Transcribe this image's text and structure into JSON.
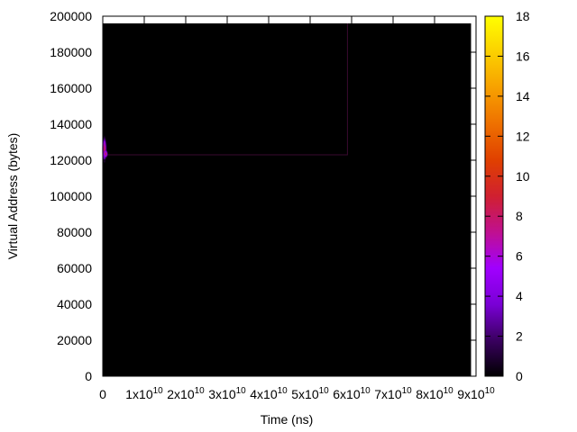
{
  "chart_data": {
    "type": "heatmap",
    "title": "",
    "xlabel": "Time (ns)",
    "ylabel": "Virtual Address (bytes)",
    "xlim": [
      0,
      90000000000
    ],
    "ylim": [
      0,
      200000
    ],
    "x_ticks": [
      {
        "value": 0,
        "base": "0",
        "exp": ""
      },
      {
        "value": 10000000000,
        "base": "1x10",
        "exp": "10"
      },
      {
        "value": 20000000000,
        "base": "2x10",
        "exp": "10"
      },
      {
        "value": 30000000000,
        "base": "3x10",
        "exp": "10"
      },
      {
        "value": 40000000000,
        "base": "4x10",
        "exp": "10"
      },
      {
        "value": 50000000000,
        "base": "5x10",
        "exp": "10"
      },
      {
        "value": 60000000000,
        "base": "6x10",
        "exp": "10"
      },
      {
        "value": 70000000000,
        "base": "7x10",
        "exp": "10"
      },
      {
        "value": 80000000000,
        "base": "8x10",
        "exp": "10"
      },
      {
        "value": 90000000000,
        "base": "9x10",
        "exp": "10"
      }
    ],
    "y_ticks": [
      "0",
      "20000",
      "40000",
      "60000",
      "80000",
      "100000",
      "120000",
      "140000",
      "160000",
      "180000",
      "200000"
    ],
    "colorbar": {
      "range": [
        0,
        18
      ],
      "ticks": [
        "0",
        "2",
        "4",
        "6",
        "8",
        "10",
        "12",
        "14",
        "16",
        "18"
      ],
      "palette": [
        "#000000",
        "#3a0060",
        "#7a00d6",
        "#a000ff",
        "#c01090",
        "#d02030",
        "#e04000",
        "#ee7000",
        "#f7a000",
        "#fbd000",
        "#ffff00"
      ]
    },
    "background_value": 0,
    "data_extent": {
      "x": [
        0,
        88800000000
      ],
      "y": [
        0,
        196000
      ]
    },
    "features": [
      {
        "kind": "region-outline",
        "x": [
          0,
          59000000000
        ],
        "y": [
          123000,
          196000
        ],
        "value": 1
      },
      {
        "kind": "hotspot",
        "x": [
          0,
          800000000
        ],
        "y": [
          118000,
          134000
        ],
        "value": 6
      },
      {
        "kind": "hotspot",
        "x": [
          300000000,
          1100000000
        ],
        "y": [
          121000,
          126000
        ],
        "value": 9
      }
    ]
  }
}
